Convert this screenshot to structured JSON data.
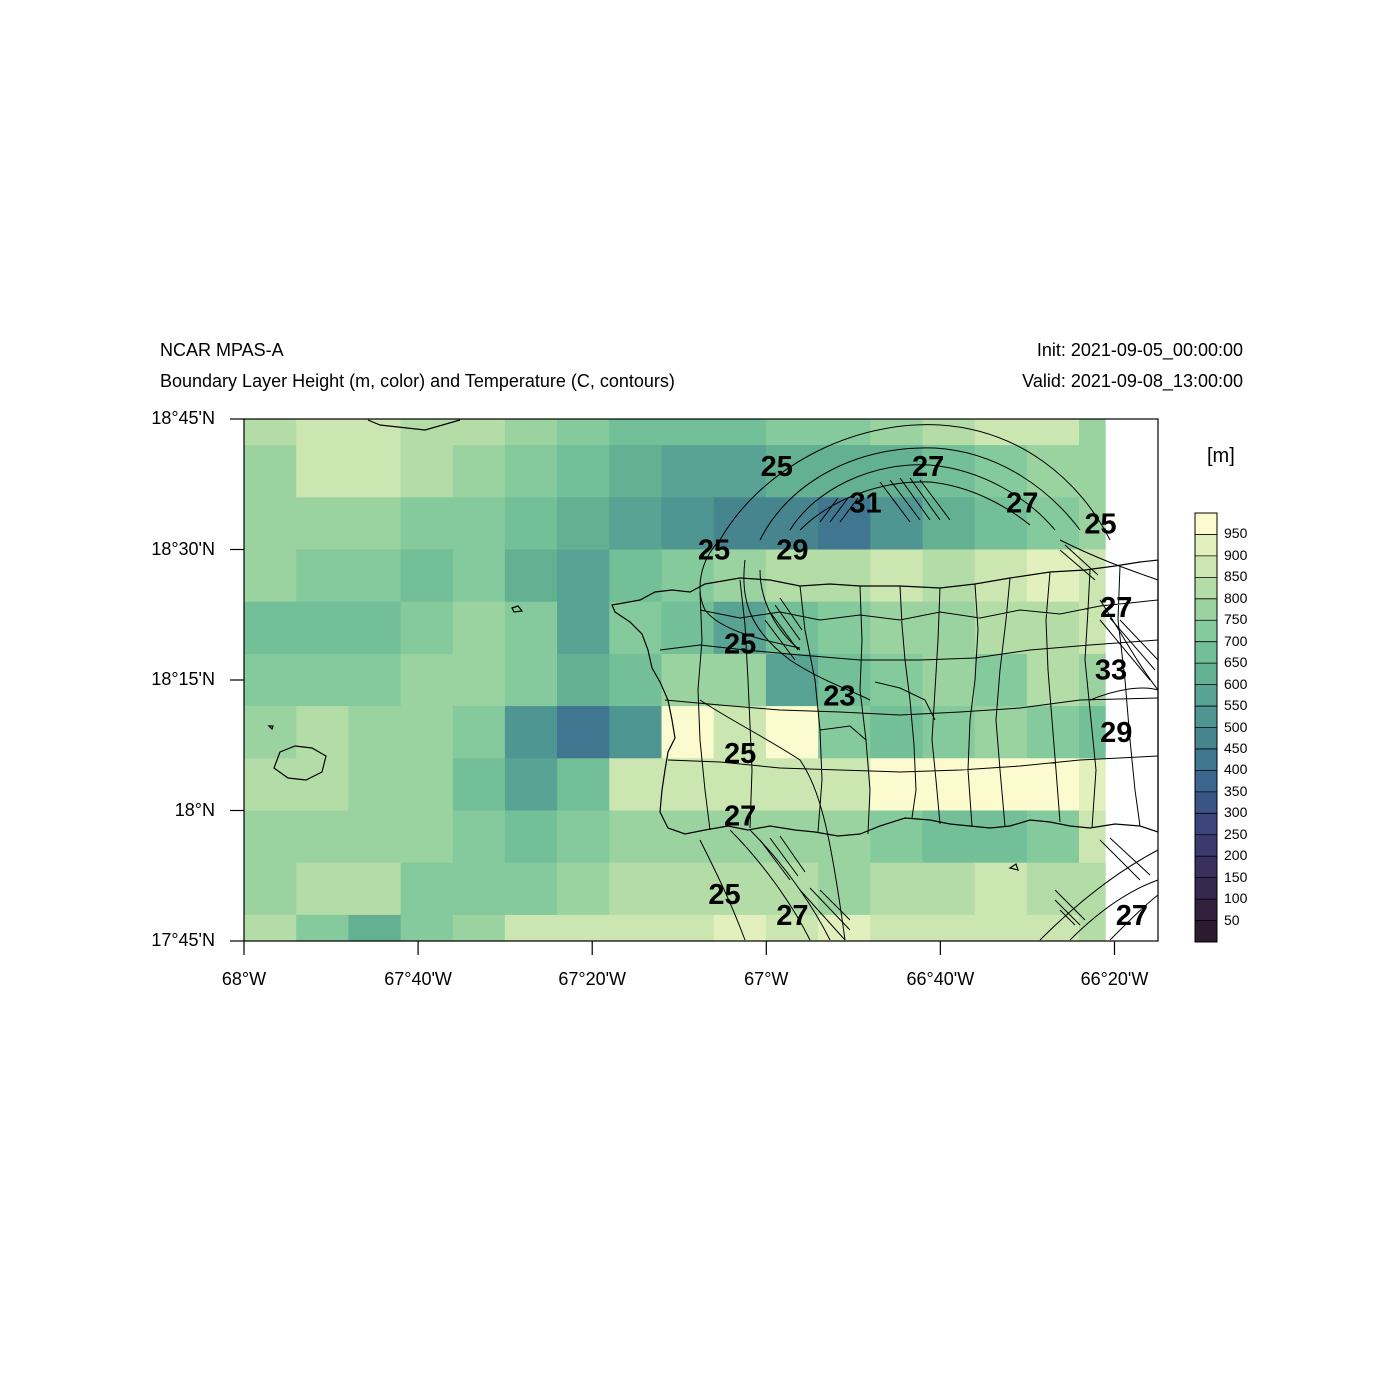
{
  "header": {
    "title_left": "NCAR MPAS-A",
    "subtitle_left": "Boundary Layer Height (m, color) and Temperature (C, contours)",
    "title_right": "Init: 2021-09-05_00:00:00",
    "subtitle_right": "Valid: 2021-09-08_13:00:00"
  },
  "map": {
    "lon_range": [
      -68.0,
      -66.25
    ],
    "lat_range": [
      17.75,
      18.75
    ],
    "x_ticks": [
      {
        "lon": -68.0,
        "label": "68°W"
      },
      {
        "lon": -67.6667,
        "label": "67°40'W"
      },
      {
        "lon": -67.3333,
        "label": "67°20'W"
      },
      {
        "lon": -67.0,
        "label": "67°W"
      },
      {
        "lon": -66.6667,
        "label": "66°40'W"
      },
      {
        "lon": -66.3333,
        "label": "66°20'W"
      }
    ],
    "y_ticks": [
      {
        "lat": 18.75,
        "label": "18°45'N"
      },
      {
        "lat": 18.5,
        "label": "18°30'N"
      },
      {
        "lat": 18.25,
        "label": "18°15'N"
      },
      {
        "lat": 18.0,
        "label": "18°N"
      },
      {
        "lat": 17.75,
        "label": "17°45'N"
      }
    ]
  },
  "colorbar": {
    "unit": "[m]",
    "levels": [
      "50",
      "100",
      "150",
      "200",
      "250",
      "300",
      "350",
      "400",
      "450",
      "500",
      "550",
      "600",
      "650",
      "700",
      "750",
      "800",
      "850",
      "900",
      "950"
    ],
    "colors": [
      "#2b1a30",
      "#31213f",
      "#36284f",
      "#393060",
      "#3b3a70",
      "#3b457c",
      "#3a5585",
      "#3b6690",
      "#40768f",
      "#47858e",
      "#4f9591",
      "#58a393",
      "#63b093",
      "#72bf98",
      "#84ca9c",
      "#9bd3a0",
      "#b3dca6",
      "#cbe6b0",
      "#e2f0bd",
      "#fbfbcf"
    ]
  },
  "field": {
    "row_heights": [
      0.05,
      0.1,
      0.1,
      0.1,
      0.1,
      0.1,
      0.1,
      0.1,
      0.1,
      0.1,
      0.05
    ],
    "col_widths": [
      0.0571,
      0.0571,
      0.0571,
      0.0571,
      0.0571,
      0.0571,
      0.0571,
      0.0571,
      0.0571,
      0.0571,
      0.0571,
      0.0571,
      0.0571,
      0.0571,
      0.0571,
      0.0571,
      0.0286
    ],
    "grid": [
      [
        16,
        17,
        17,
        16,
        16,
        15,
        14,
        13,
        13,
        13,
        14,
        14,
        15,
        16,
        17,
        17,
        15
      ],
      [
        15,
        17,
        17,
        16,
        15,
        14,
        13,
        12,
        11,
        11,
        12,
        12,
        12,
        13,
        14,
        15,
        15
      ],
      [
        15,
        15,
        15,
        14,
        14,
        13,
        12,
        11,
        10,
        9,
        9,
        8,
        10,
        12,
        13,
        14,
        15
      ],
      [
        15,
        14,
        14,
        13,
        14,
        12,
        11,
        13,
        14,
        15,
        16,
        16,
        17,
        16,
        17,
        18,
        17
      ],
      [
        13,
        13,
        13,
        14,
        15,
        14,
        11,
        14,
        13,
        11,
        13,
        14,
        15,
        15,
        16,
        16,
        17
      ],
      [
        14,
        14,
        14,
        15,
        15,
        14,
        12,
        13,
        15,
        15,
        11,
        13,
        14,
        15,
        14,
        16,
        15
      ],
      [
        15,
        16,
        15,
        15,
        14,
        10,
        8,
        10,
        19,
        17,
        19,
        14,
        13,
        14,
        15,
        14,
        13
      ],
      [
        16,
        16,
        15,
        15,
        13,
        11,
        13,
        17,
        17,
        17,
        17,
        17,
        19,
        19,
        19,
        19,
        18
      ],
      [
        15,
        15,
        15,
        15,
        14,
        13,
        14,
        15,
        15,
        15,
        15,
        15,
        14,
        13,
        13,
        14,
        17
      ],
      [
        15,
        16,
        16,
        14,
        14,
        14,
        15,
        16,
        16,
        16,
        16,
        15,
        16,
        16,
        17,
        16,
        16
      ],
      [
        16,
        14,
        12,
        14,
        15,
        17,
        17,
        17,
        17,
        18,
        17,
        18,
        17,
        17,
        17,
        17,
        16
      ]
    ]
  },
  "contour_labels": [
    {
      "text": "25",
      "lon": -66.98,
      "lat": 18.66
    },
    {
      "text": "27",
      "lon": -66.69,
      "lat": 18.66
    },
    {
      "text": "31",
      "lon": -66.81,
      "lat": 18.59
    },
    {
      "text": "27",
      "lon": -66.51,
      "lat": 18.59
    },
    {
      "text": "25",
      "lon": -66.36,
      "lat": 18.55
    },
    {
      "text": "25",
      "lon": -67.1,
      "lat": 18.5
    },
    {
      "text": "29",
      "lon": -66.95,
      "lat": 18.5
    },
    {
      "text": "27",
      "lon": -66.33,
      "lat": 18.39
    },
    {
      "text": "25",
      "lon": -67.05,
      "lat": 18.32
    },
    {
      "text": "33",
      "lon": -66.34,
      "lat": 18.27
    },
    {
      "text": "23",
      "lon": -66.86,
      "lat": 18.22
    },
    {
      "text": "29",
      "lon": -66.33,
      "lat": 18.15
    },
    {
      "text": "25",
      "lon": -67.05,
      "lat": 18.11
    },
    {
      "text": "27",
      "lon": -67.05,
      "lat": 17.99
    },
    {
      "text": "25",
      "lon": -67.08,
      "lat": 17.84
    },
    {
      "text": "27",
      "lon": -66.95,
      "lat": 17.8
    },
    {
      "text": "27",
      "lon": -66.3,
      "lat": 17.8
    }
  ]
}
